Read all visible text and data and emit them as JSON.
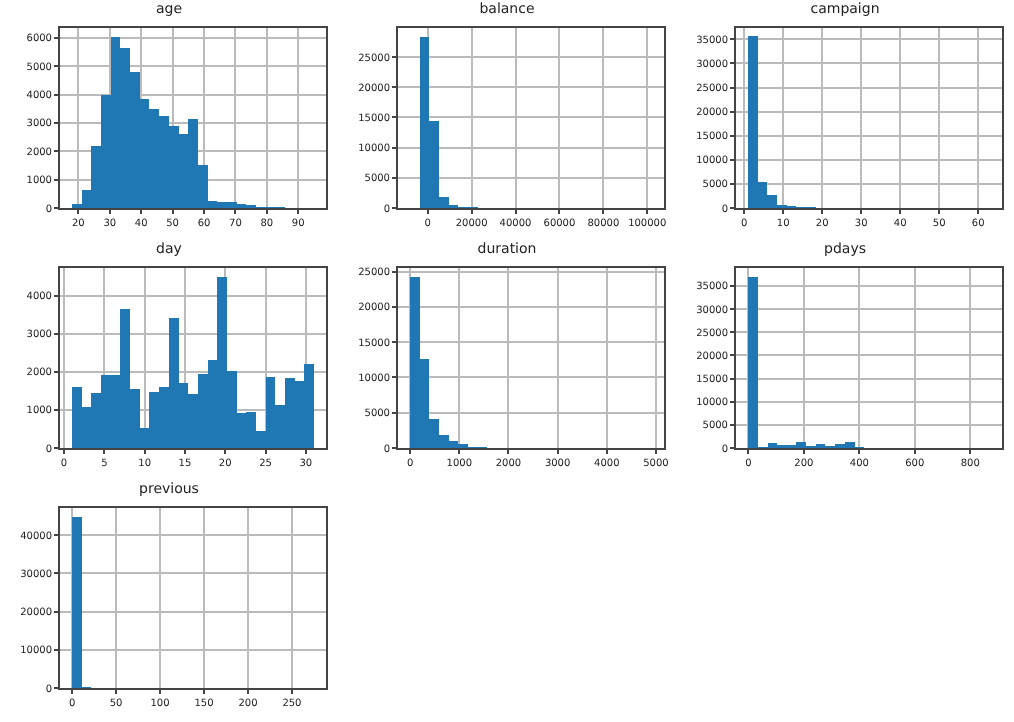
{
  "chart_data": [
    {
      "type": "histogram",
      "title": "age",
      "color": "#1f77b4",
      "grid": true,
      "bins": [
        18,
        21.08,
        24.16,
        27.24,
        30.32,
        33.4,
        36.48,
        39.56,
        42.64,
        45.72,
        48.8,
        51.88,
        54.96,
        58.04,
        61.12,
        64.2,
        67.28,
        70.36,
        73.44,
        76.52,
        79.6,
        82.68,
        85.76,
        88.84,
        91.92,
        95
      ],
      "values": [
        150,
        650,
        2200,
        4000,
        6050,
        5650,
        4800,
        3850,
        3500,
        3250,
        2900,
        2600,
        3150,
        1500,
        250,
        200,
        200,
        150,
        100,
        50,
        50,
        50,
        0,
        0,
        0
      ],
      "xlim": [
        14.15,
        98.85
      ],
      "xticks": [
        20,
        30,
        40,
        50,
        60,
        70,
        80,
        90
      ],
      "ylim": [
        0,
        6350
      ],
      "yticks": [
        0,
        1000,
        2000,
        3000,
        4000,
        5000,
        6000
      ]
    },
    {
      "type": "histogram",
      "title": "balance",
      "color": "#1f77b4",
      "grid": true,
      "bins": [
        -8019,
        -3613,
        793,
        5199,
        9604,
        14010,
        18416,
        22822,
        27228,
        31634,
        36039,
        40445,
        44851,
        49257,
        53663,
        58069,
        62474,
        66880,
        71286,
        75692,
        80098,
        84504,
        88909,
        93315,
        97721,
        102127
      ],
      "values": [
        0,
        28400,
        14400,
        1800,
        500,
        200,
        100,
        0,
        0,
        0,
        0,
        0,
        0,
        0,
        0,
        0,
        0,
        0,
        0,
        0,
        0,
        0,
        0,
        0,
        0
      ],
      "xlim": [
        -13526,
        107634
      ],
      "xticks": [
        0,
        20000,
        40000,
        60000,
        80000,
        100000
      ],
      "ylim": [
        0,
        29820
      ],
      "yticks": [
        0,
        5000,
        10000,
        15000,
        20000,
        25000
      ]
    },
    {
      "type": "histogram",
      "title": "campaign",
      "color": "#1f77b4",
      "grid": true,
      "bins": [
        1,
        3.48,
        5.96,
        8.44,
        10.92,
        13.4,
        15.88,
        18.36,
        20.84,
        23.32,
        25.8,
        28.28,
        30.76,
        33.24,
        35.72,
        38.2,
        40.68,
        43.16,
        45.64,
        48.12,
        50.6,
        53.08,
        55.56,
        58.04,
        60.52,
        63
      ],
      "values": [
        35600,
        5300,
        2600,
        600,
        500,
        200,
        200,
        100,
        100,
        0,
        0,
        0,
        0,
        0,
        0,
        0,
        0,
        0,
        0,
        0,
        0,
        0,
        0,
        0,
        0
      ],
      "xlim": [
        -2.1,
        66.1
      ],
      "xticks": [
        0,
        10,
        20,
        30,
        40,
        50,
        60
      ],
      "ylim": [
        0,
        37350
      ],
      "yticks": [
        0,
        5000,
        10000,
        15000,
        20000,
        25000,
        30000,
        35000
      ]
    },
    {
      "type": "histogram",
      "title": "day",
      "color": "#1f77b4",
      "grid": true,
      "bins": [
        1,
        2.2,
        3.4,
        4.6,
        5.8,
        7,
        8.2,
        9.4,
        10.6,
        11.8,
        13,
        14.2,
        15.4,
        16.6,
        17.8,
        19,
        20.2,
        21.4,
        22.6,
        23.8,
        25,
        26.2,
        27.4,
        28.6,
        29.8,
        31
      ],
      "values": [
        1610,
        1080,
        1450,
        1910,
        1930,
        3660,
        1560,
        520,
        1480,
        1600,
        3430,
        1700,
        1420,
        1940,
        2310,
        4510,
        2030,
        910,
        940,
        450,
        1880,
        1120,
        1830,
        1750,
        2210
      ],
      "xlim": [
        -0.5,
        32.5
      ],
      "xticks": [
        0,
        5,
        10,
        15,
        20,
        25,
        30
      ],
      "ylim": [
        0,
        4735
      ],
      "yticks": [
        0,
        1000,
        2000,
        3000,
        4000
      ]
    },
    {
      "type": "histogram",
      "title": "duration",
      "color": "#1f77b4",
      "grid": true,
      "bins": [
        0,
        197,
        393,
        590,
        787,
        984,
        1180,
        1377,
        1574,
        1770,
        1967,
        2164,
        2361,
        2557,
        2754,
        2951,
        3148,
        3344,
        3541,
        3738,
        3934,
        4131,
        4328,
        4525,
        4721,
        4918
      ],
      "values": [
        24300,
        12600,
        4100,
        1900,
        1000,
        500,
        200,
        100,
        0,
        0,
        0,
        0,
        0,
        0,
        0,
        0,
        0,
        0,
        0,
        0,
        0,
        0,
        0,
        0,
        0
      ],
      "xlim": [
        -245.9,
        5163.9
      ],
      "xticks": [
        0,
        1000,
        2000,
        3000,
        4000,
        5000
      ],
      "ylim": [
        0,
        25515
      ],
      "yticks": [
        0,
        5000,
        10000,
        15000,
        20000,
        25000
      ]
    },
    {
      "type": "histogram",
      "title": "pdays",
      "color": "#1f77b4",
      "grid": true,
      "bins": [
        -1,
        34,
        69,
        104,
        139,
        173,
        208,
        243,
        278,
        313,
        348,
        383,
        418,
        452,
        487,
        522,
        557,
        592,
        627,
        662,
        697,
        731,
        766,
        801,
        836,
        871
      ],
      "values": [
        37000,
        200,
        1100,
        700,
        700,
        1400,
        500,
        800,
        400,
        900,
        1200,
        200,
        0,
        0,
        0,
        0,
        0,
        0,
        0,
        0,
        0,
        0,
        0,
        0,
        0
      ],
      "xlim": [
        -44.6,
        914.6
      ],
      "xticks": [
        0,
        200,
        400,
        600,
        800
      ],
      "ylim": [
        0,
        38850
      ],
      "yticks": [
        0,
        5000,
        10000,
        15000,
        20000,
        25000,
        30000,
        35000
      ]
    },
    {
      "type": "histogram",
      "title": "previous",
      "color": "#1f77b4",
      "grid": true,
      "bins": [
        0,
        11,
        22,
        33,
        44,
        55,
        66,
        77,
        88,
        99,
        110,
        121,
        132,
        143,
        154,
        165,
        176,
        187,
        198,
        209,
        220,
        231,
        242,
        253,
        264,
        275
      ],
      "values": [
        44900,
        300,
        0,
        0,
        0,
        0,
        0,
        0,
        0,
        0,
        0,
        0,
        0,
        0,
        0,
        0,
        0,
        0,
        0,
        0,
        0,
        0,
        0,
        0,
        0
      ],
      "xlim": [
        -13.75,
        288.75
      ],
      "xticks": [
        0,
        50,
        100,
        150,
        200,
        250
      ],
      "ylim": [
        0,
        47145
      ],
      "yticks": [
        0,
        10000,
        20000,
        30000,
        40000
      ]
    }
  ]
}
